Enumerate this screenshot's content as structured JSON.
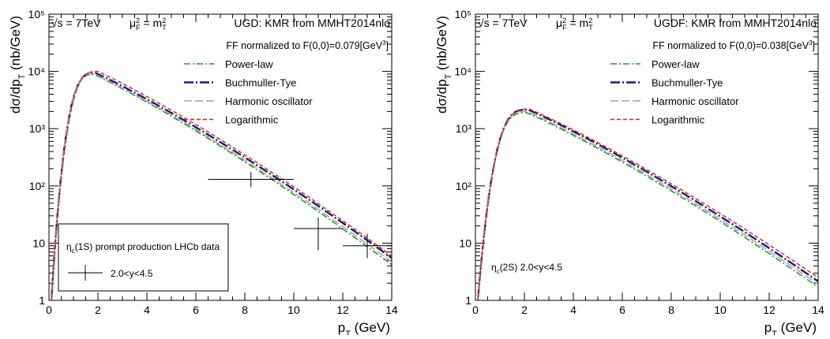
{
  "chart_data": [
    {
      "type": "line",
      "scale": {
        "x": "linear",
        "y": "log"
      },
      "xlim": [
        0,
        14
      ],
      "ylim": [
        1,
        100000
      ],
      "xticks": [
        "0",
        "2",
        "4",
        "6",
        "8",
        "10",
        "12",
        "14"
      ],
      "yticks": [
        "1",
        "10",
        "10²",
        "10³",
        "10⁴",
        "10⁵"
      ],
      "xlabel": "p_T (GeV)",
      "ylabel": "dσ/dp_T (nb/GeV)",
      "header_left": "√s = 7TeV",
      "header_mid": "μ²_F = m²_T",
      "header_right": "UGD: KMR from MMHT2014nlo",
      "ff_note": "FF normalized to F(0,0)=0.079[GeV³]",
      "legend_position": "top-right",
      "series": [
        {
          "name": "Power-law",
          "color": "#1aa31a",
          "dash": "8,3,2,3",
          "width": 1.6,
          "peak_x": 1.85,
          "peak_y": 8800,
          "y_at_14": 4.2
        },
        {
          "name": "Buchmuller-Tye",
          "color": "#1a1a80",
          "dash": "12,3,2,3",
          "width": 2.4,
          "peak_x": 1.9,
          "peak_y": 9400,
          "y_at_14": 5.5
        },
        {
          "name": "Harmonic oscillator",
          "color": "#b09aa6",
          "dash": "10,4",
          "width": 1.5,
          "peak_x": 1.85,
          "peak_y": 9000,
          "y_at_14": 4.7
        },
        {
          "name": "Logarithmic",
          "color": "#e61a1a",
          "dash": "5,3",
          "width": 1.4,
          "peak_x": 2.0,
          "peak_y": 10000,
          "y_at_14": 6.0
        }
      ],
      "data_points": [
        {
          "x": 8.25,
          "y": 130,
          "xerr": [
            6.5,
            10.0
          ],
          "yerr": [
            95,
            175
          ]
        },
        {
          "x": 11.0,
          "y": 18,
          "xerr": [
            10.0,
            12.0
          ],
          "yerr": [
            7.5,
            28
          ]
        },
        {
          "x": 13.0,
          "y": 9,
          "xerr": [
            12.0,
            14.0
          ],
          "yerr": [
            5.5,
            14.5
          ]
        }
      ],
      "data_legend_title": "η_c(1S) prompt production LHCb data",
      "data_legend_entry": "2.0<y<4.5"
    },
    {
      "type": "line",
      "scale": {
        "x": "linear",
        "y": "log"
      },
      "xlim": [
        0,
        14
      ],
      "ylim": [
        1,
        100000
      ],
      "xticks": [
        "0",
        "2",
        "4",
        "6",
        "8",
        "10",
        "12",
        "14"
      ],
      "yticks": [
        "1",
        "10",
        "10²",
        "10³",
        "10⁴",
        "10⁵"
      ],
      "xlabel": "p_T (GeV)",
      "ylabel": "dσ/dp_T (nb/GeV)",
      "header_left": "√s = 7TeV",
      "header_mid": "μ²_F = m²_T",
      "header_right": "UGDF: KMR from MMHT2014nlo",
      "ff_note": "FF normalized to F(0,0)=0.038[GeV³]",
      "legend_position": "top-right",
      "series": [
        {
          "name": "Power-law",
          "color": "#1aa31a",
          "dash": "8,3,2,3",
          "width": 1.6,
          "peak_x": 2.1,
          "peak_y": 1900,
          "y_at_14": 1.7
        },
        {
          "name": "Buchmuller-Tye",
          "color": "#1a1a80",
          "dash": "12,3,2,3",
          "width": 2.4,
          "peak_x": 2.15,
          "peak_y": 2150,
          "y_at_14": 2.15
        },
        {
          "name": "Harmonic oscillator",
          "color": "#b09aa6",
          "dash": "10,4",
          "width": 1.5,
          "peak_x": 2.1,
          "peak_y": 2000,
          "y_at_14": 1.9
        },
        {
          "name": "Logarithmic",
          "color": "#e61a1a",
          "dash": "5,3",
          "width": 1.4,
          "peak_x": 2.2,
          "peak_y": 2200,
          "y_at_14": 2.5
        }
      ],
      "annotation": "η_c(2S)  2.0<y<4.5"
    }
  ]
}
